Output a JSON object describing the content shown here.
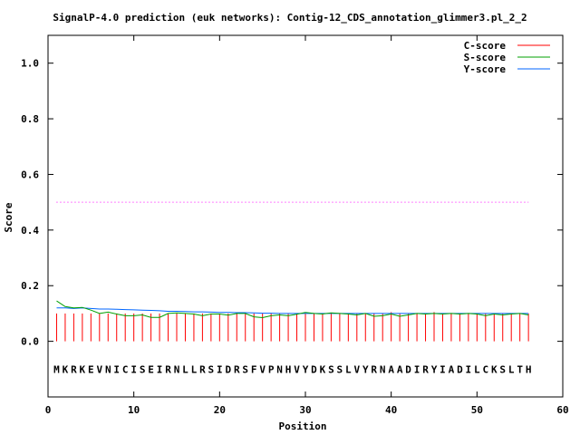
{
  "chart_data": {
    "type": "line",
    "title": "SignalP-4.0 prediction (euk networks): Contig-12_CDS_annotation_glimmer3.pl_2_2",
    "xlabel": "Position",
    "ylabel": "Score",
    "xlim": [
      0,
      60
    ],
    "ylim": [
      -0.2,
      1.1
    ],
    "xticks": [
      0,
      10,
      20,
      30,
      40,
      50,
      60
    ],
    "yticks": [
      0.0,
      0.2,
      0.4,
      0.6,
      0.8,
      1.0
    ],
    "xtick_labels": [
      "0",
      "10",
      "20",
      "30",
      "40",
      "50",
      "60"
    ],
    "ytick_labels": [
      "0.0",
      "0.2",
      "0.4",
      "0.6",
      "0.8",
      "1.0"
    ],
    "grid": false,
    "legend_position": "top-right",
    "threshold": 0.5,
    "threshold_color": "#ff00ff",
    "sequence": [
      "M",
      "K",
      "R",
      "K",
      "E",
      "V",
      "N",
      "I",
      "C",
      "I",
      "S",
      "E",
      "I",
      "R",
      "N",
      "L",
      "L",
      "R",
      "S",
      "I",
      "D",
      "R",
      "S",
      "F",
      "V",
      "P",
      "N",
      "H",
      "V",
      "Y",
      "D",
      "K",
      "S",
      "S",
      "L",
      "V",
      "Y",
      "R",
      "N",
      "A",
      "A",
      "D",
      "I",
      "R",
      "Y",
      "I",
      "A",
      "D",
      "I",
      "L",
      "C",
      "K",
      "S",
      "L",
      "T",
      "H"
    ],
    "x": [
      1,
      2,
      3,
      4,
      5,
      6,
      7,
      8,
      9,
      10,
      11,
      12,
      13,
      14,
      15,
      16,
      17,
      18,
      19,
      20,
      21,
      22,
      23,
      24,
      25,
      26,
      27,
      28,
      29,
      30,
      31,
      32,
      33,
      34,
      35,
      36,
      37,
      38,
      39,
      40,
      41,
      42,
      43,
      44,
      45,
      46,
      47,
      48,
      49,
      50,
      51,
      52,
      53,
      54,
      55,
      56
    ],
    "series": [
      {
        "name": "C-score",
        "style": "impulses",
        "color": "#ff0000",
        "values": [
          0.1,
          0.1,
          0.1,
          0.1,
          0.1,
          0.1,
          0.1,
          0.1,
          0.1,
          0.1,
          0.1,
          0.1,
          0.1,
          0.1,
          0.1,
          0.1,
          0.1,
          0.1,
          0.1,
          0.1,
          0.1,
          0.1,
          0.1,
          0.1,
          0.1,
          0.1,
          0.1,
          0.1,
          0.1,
          0.1,
          0.1,
          0.1,
          0.1,
          0.1,
          0.1,
          0.1,
          0.1,
          0.1,
          0.1,
          0.105,
          0.1,
          0.1,
          0.1,
          0.1,
          0.105,
          0.1,
          0.1,
          0.1,
          0.1,
          0.1,
          0.1,
          0.1,
          0.1,
          0.1,
          0.1,
          0.1
        ]
      },
      {
        "name": "S-score",
        "style": "line",
        "color": "#00a000",
        "values": [
          0.145,
          0.125,
          0.12,
          0.122,
          0.112,
          0.1,
          0.105,
          0.098,
          0.092,
          0.092,
          0.095,
          0.086,
          0.086,
          0.1,
          0.102,
          0.1,
          0.098,
          0.092,
          0.098,
          0.098,
          0.094,
          0.1,
          0.1,
          0.088,
          0.085,
          0.092,
          0.095,
          0.092,
          0.097,
          0.104,
          0.1,
          0.098,
          0.102,
          0.1,
          0.098,
          0.095,
          0.1,
          0.09,
          0.092,
          0.098,
          0.09,
          0.095,
          0.1,
          0.098,
          0.1,
          0.098,
          0.1,
          0.098,
          0.1,
          0.098,
          0.092,
          0.098,
          0.095,
          0.098,
          0.1,
          0.095
        ]
      },
      {
        "name": "Y-score",
        "style": "line",
        "color": "#0066ff",
        "values": [
          0.12,
          0.12,
          0.118,
          0.12,
          0.118,
          0.116,
          0.116,
          0.115,
          0.114,
          0.113,
          0.112,
          0.111,
          0.11,
          0.108,
          0.108,
          0.107,
          0.106,
          0.106,
          0.105,
          0.104,
          0.104,
          0.103,
          0.103,
          0.102,
          0.101,
          0.101,
          0.1,
          0.1,
          0.1,
          0.1,
          0.1,
          0.1,
          0.1,
          0.1,
          0.1,
          0.1,
          0.1,
          0.1,
          0.1,
          0.1,
          0.1,
          0.1,
          0.1,
          0.1,
          0.1,
          0.1,
          0.1,
          0.1,
          0.1,
          0.1,
          0.1,
          0.1,
          0.1,
          0.1,
          0.1,
          0.1
        ]
      }
    ]
  }
}
